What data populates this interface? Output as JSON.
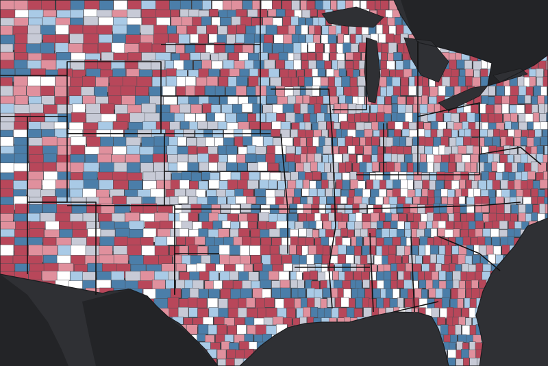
{
  "map": {
    "basemap": "dark",
    "region": "contiguous-united-states-central-and-east",
    "unit": "county",
    "colors": {
      "ocean": "#2f3034",
      "foreign_land": "#232427",
      "state_border": "#111111",
      "county_border": "#4a4d55",
      "class_dark_red": "#b8475a",
      "class_light_red": "#e0909d",
      "class_white": "#ffffff",
      "class_gray": "#c7cad6",
      "class_light_blue": "#a9cae6",
      "class_dark_blue": "#4b7ea9"
    },
    "class_weights": {
      "dark_red": 0.31,
      "light_red": 0.14,
      "white": 0.12,
      "gray": 0.13,
      "light_blue": 0.13,
      "dark_blue": 0.17
    },
    "class_weights_plains": {
      "dark_red": 0.15,
      "light_red": 0.08,
      "white": 0.24,
      "gray": 0.15,
      "light_blue": 0.14,
      "dark_blue": 0.24
    }
  }
}
